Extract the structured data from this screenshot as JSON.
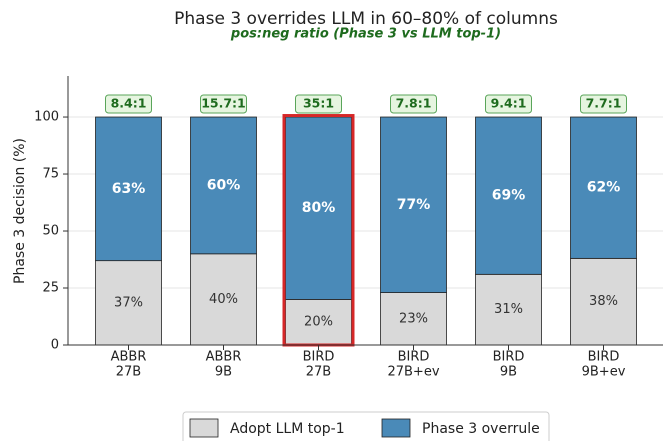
{
  "chart_data": {
    "type": "stacked_bar",
    "title": "Phase 3 overrides LLM in 60–80% of columns",
    "subtitle": "pos:neg ratio (Phase 3 vs LLM top-1)",
    "y_label": "Phase 3 decision (%)",
    "categories": [
      [
        "ABBR",
        "27B"
      ],
      [
        "ABBR",
        "9B"
      ],
      [
        "BIRD",
        "27B"
      ],
      [
        "BIRD",
        "27B+ev"
      ],
      [
        "BIRD",
        "9B"
      ],
      [
        "BIRD",
        "9B+ev"
      ]
    ],
    "series": [
      {
        "name": "Adopt LLM top-1",
        "color": "#d9d9d9",
        "values": [
          37,
          40,
          20,
          23,
          31,
          38
        ],
        "value_labels": [
          "37%",
          "40%",
          "20%",
          "23%",
          "31%",
          "38%"
        ]
      },
      {
        "name": "Phase 3 overrule",
        "color": "#4a8ab8",
        "values": [
          63,
          60,
          80,
          77,
          69,
          62
        ],
        "value_labels": [
          "63%",
          "60%",
          "80%",
          "77%",
          "69%",
          "62%"
        ]
      }
    ],
    "annotations": [
      "8.4:1",
      "15.7:1",
      "35:1",
      "7.8:1",
      "9.4:1",
      "7.7:1"
    ],
    "highlight_index": 2,
    "highlight_color": "#d62728",
    "ylim": [
      0,
      118
    ],
    "yticks": [
      0,
      25,
      50,
      75,
      100
    ],
    "grid": true,
    "legend": "bottom"
  }
}
